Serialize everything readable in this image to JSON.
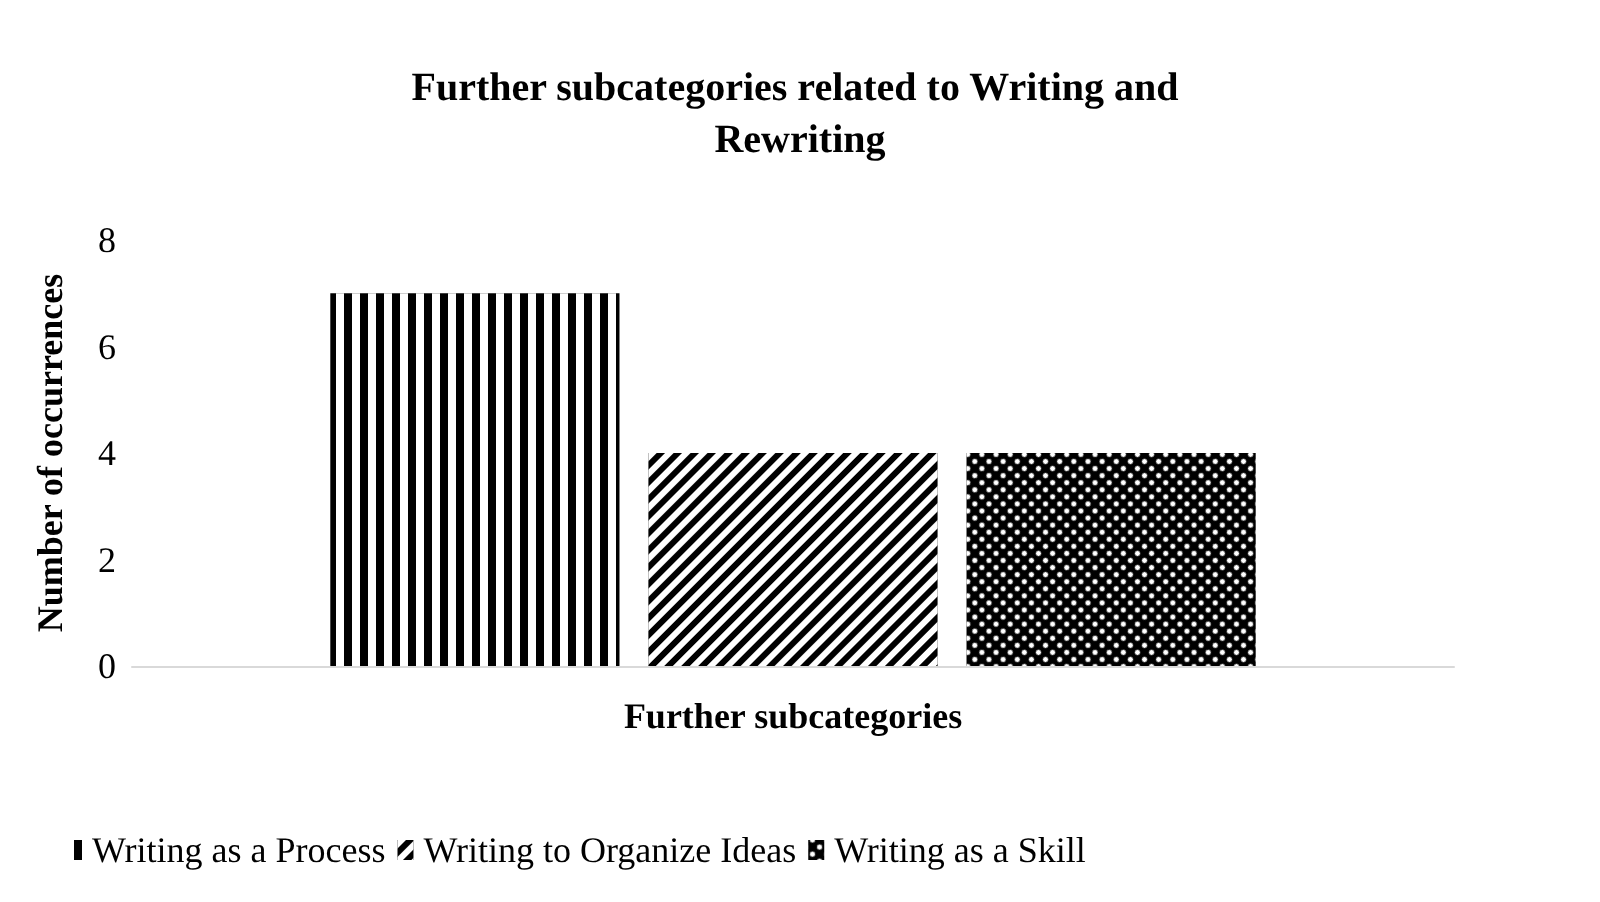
{
  "chart_data": {
    "type": "bar",
    "title": "Further subcategories related to Writing and Rewriting",
    "xlabel": "Further subcategories",
    "ylabel": "Number of occurrences",
    "categories": [
      null
    ],
    "series": [
      {
        "name": "Writing as a Process",
        "color": "#000000",
        "values": [
          7
        ]
      },
      {
        "name": "Writing to Organize Ideas",
        "color": "#000000",
        "values": [
          4
        ]
      },
      {
        "name": "Writing as a Skill",
        "color": "#000000",
        "values": [
          4
        ]
      }
    ],
    "ylim": [
      0,
      8
    ],
    "yticks": [
      0,
      2,
      4,
      6,
      8
    ],
    "grid": false,
    "legend": "bottom"
  }
}
